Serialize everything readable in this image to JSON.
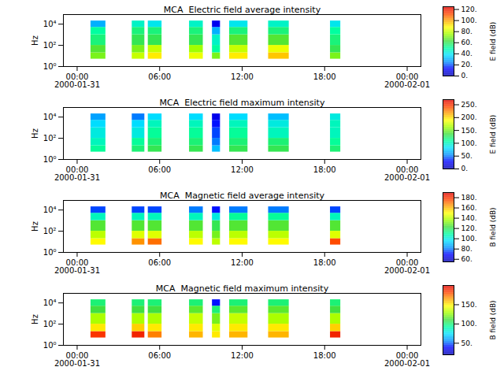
{
  "chart_data": [
    {
      "type": "heatmap",
      "title": "MCA  Electric field average intensity",
      "y_label": "Hz",
      "log": "y",
      "xlim": [
        "2000-01-30T23:00",
        "2000-02-01T01:00"
      ],
      "xticks": [
        {
          "value": "2000-01-31T00:00",
          "label": "00:00\n2000-01-31"
        },
        {
          "value": "2000-01-31T06:00",
          "label": "06:00"
        },
        {
          "value": "2000-01-31T12:00",
          "label": "12:00"
        },
        {
          "value": "2000-01-31T18:00",
          "label": "18:00"
        },
        {
          "value": "2000-02-01T00:00",
          "label": "00:00\n2000-02-01"
        }
      ],
      "ylim": [
        1,
        80000
      ],
      "yticks": [
        {
          "value": 1,
          "label": "10⁰"
        },
        {
          "value": 100,
          "label": "10²"
        },
        {
          "value": 10000,
          "label": "10⁴"
        }
      ],
      "x_start": [
        "2000-01-31T01:00",
        "2000-01-31T04:00",
        "2000-01-31T05:10",
        "2000-01-31T08:10",
        "2000-01-31T09:50",
        "2000-01-31T11:05",
        "2000-01-31T13:55",
        "2000-01-31T18:25"
      ],
      "x_end": [
        "2000-01-31T02:05",
        "2000-01-31T04:55",
        "2000-01-31T06:10",
        "2000-01-31T09:10",
        "2000-01-31T10:25",
        "2000-01-31T12:25",
        "2000-01-31T15:25",
        "2000-01-31T19:10"
      ],
      "y_bins": [
        5,
        20,
        100,
        1000,
        5000,
        20000
      ],
      "cells": [
        [
          70,
          65,
          55,
          50,
          30
        ],
        [
          80,
          70,
          60,
          55,
          45
        ],
        [
          90,
          80,
          60,
          55,
          40
        ],
        [
          85,
          75,
          60,
          55,
          45
        ],
        [
          70,
          50,
          45,
          30,
          10
        ],
        [
          90,
          80,
          65,
          55,
          40
        ],
        [
          95,
          85,
          65,
          55,
          45
        ],
        [
          70,
          60,
          55,
          50,
          40
        ]
      ],
      "colorbar_label": "E field (dB)",
      "zlim": [
        0,
        125
      ],
      "zticks": [
        {
          "value": 0,
          "label": "0."
        },
        {
          "value": 20,
          "label": "20."
        },
        {
          "value": 40,
          "label": "40."
        },
        {
          "value": 60,
          "label": "60."
        },
        {
          "value": 80,
          "label": "80."
        },
        {
          "value": 100,
          "label": "100."
        },
        {
          "value": 120,
          "label": "120."
        }
      ]
    },
    {
      "type": "heatmap",
      "title": "MCA  Electric field maximum intensity",
      "y_label": "Hz",
      "log": "y",
      "xlim": [
        "2000-01-30T23:00",
        "2000-02-01T01:00"
      ],
      "xticks": [
        {
          "value": "2000-01-31T00:00",
          "label": "00:00\n2000-01-31"
        },
        {
          "value": "2000-01-31T06:00",
          "label": "06:00"
        },
        {
          "value": "2000-01-31T12:00",
          "label": "12:00"
        },
        {
          "value": "2000-01-31T18:00",
          "label": "18:00"
        },
        {
          "value": "2000-02-01T00:00",
          "label": "00:00\n2000-02-01"
        }
      ],
      "ylim": [
        1,
        80000
      ],
      "yticks": [
        {
          "value": 1,
          "label": "10⁰"
        },
        {
          "value": 100,
          "label": "10²"
        },
        {
          "value": 10000,
          "label": "10⁴"
        }
      ],
      "x_start": [
        "2000-01-31T01:00",
        "2000-01-31T04:00",
        "2000-01-31T05:10",
        "2000-01-31T08:10",
        "2000-01-31T09:50",
        "2000-01-31T11:05",
        "2000-01-31T13:55",
        "2000-01-31T18:25"
      ],
      "x_end": [
        "2000-01-31T02:05",
        "2000-01-31T04:55",
        "2000-01-31T06:10",
        "2000-01-31T09:10",
        "2000-01-31T10:25",
        "2000-01-31T12:25",
        "2000-01-31T15:25",
        "2000-01-31T19:10"
      ],
      "y_bins": [
        5,
        20,
        100,
        1000,
        5000,
        20000
      ],
      "cells": [
        [
          110,
          100,
          90,
          80,
          60
        ],
        [
          120,
          110,
          90,
          80,
          50
        ],
        [
          130,
          120,
          110,
          100,
          80
        ],
        [
          130,
          120,
          110,
          100,
          80
        ],
        [
          70,
          50,
          40,
          30,
          20
        ],
        [
          130,
          120,
          110,
          100,
          80
        ],
        [
          130,
          120,
          100,
          90,
          70
        ],
        [
          120,
          110,
          100,
          100,
          90
        ]
      ],
      "colorbar_label": "E field (dB)",
      "zlim": [
        0,
        270
      ],
      "zticks": [
        {
          "value": 0,
          "label": "0."
        },
        {
          "value": 50,
          "label": "50."
        },
        {
          "value": 100,
          "label": "100."
        },
        {
          "value": 150,
          "label": "150."
        },
        {
          "value": 200,
          "label": "200."
        },
        {
          "value": 250,
          "label": "250."
        }
      ]
    },
    {
      "type": "heatmap",
      "title": "MCA  Magnetic field average intensity",
      "y_label": "Hz",
      "log": "y",
      "xlim": [
        "2000-01-30T23:00",
        "2000-02-01T01:00"
      ],
      "xticks": [
        {
          "value": "2000-01-31T00:00",
          "label": "00:00\n2000-01-31"
        },
        {
          "value": "2000-01-31T06:00",
          "label": "06:00"
        },
        {
          "value": "2000-01-31T12:00",
          "label": "12:00"
        },
        {
          "value": "2000-01-31T18:00",
          "label": "18:00"
        },
        {
          "value": "2000-02-01T00:00",
          "label": "00:00\n2000-02-01"
        }
      ],
      "ylim": [
        1,
        80000
      ],
      "yticks": [
        {
          "value": 1,
          "label": "10⁰"
        },
        {
          "value": 100,
          "label": "10²"
        },
        {
          "value": 10000,
          "label": "10⁴"
        }
      ],
      "x_start": [
        "2000-01-31T01:00",
        "2000-01-31T04:00",
        "2000-01-31T05:10",
        "2000-01-31T08:10",
        "2000-01-31T09:50",
        "2000-01-31T11:05",
        "2000-01-31T13:55",
        "2000-01-31T18:25"
      ],
      "x_end": [
        "2000-01-31T02:05",
        "2000-01-31T04:55",
        "2000-01-31T06:10",
        "2000-01-31T09:10",
        "2000-01-31T10:25",
        "2000-01-31T12:25",
        "2000-01-31T15:25",
        "2000-01-31T19:10"
      ],
      "y_bins": [
        5,
        20,
        100,
        1000,
        5000,
        20000
      ],
      "cells": [
        [
          150,
          140,
          125,
          105,
          75
        ],
        [
          165,
          145,
          125,
          105,
          75
        ],
        [
          170,
          145,
          125,
          105,
          75
        ],
        [
          150,
          140,
          125,
          105,
          80
        ],
        [
          140,
          130,
          120,
          100,
          70
        ],
        [
          150,
          140,
          125,
          110,
          80
        ],
        [
          150,
          140,
          125,
          110,
          80
        ],
        [
          175,
          145,
          125,
          105,
          75
        ]
      ],
      "colorbar_label": "B field (dB)",
      "zlim": [
        55,
        190
      ],
      "zticks": [
        {
          "value": 60,
          "label": "60."
        },
        {
          "value": 80,
          "label": "80."
        },
        {
          "value": 100,
          "label": "100."
        },
        {
          "value": 120,
          "label": "120."
        },
        {
          "value": 140,
          "label": "140."
        },
        {
          "value": 160,
          "label": "160."
        },
        {
          "value": 180,
          "label": "180."
        }
      ]
    },
    {
      "type": "heatmap",
      "title": "MCA  Magnetic field maximum intensity",
      "y_label": "Hz",
      "log": "y",
      "xlim": [
        "2000-01-30T23:00",
        "2000-02-01T01:00"
      ],
      "xticks": [
        {
          "value": "2000-01-31T00:00",
          "label": "00:00\n2000-01-31"
        },
        {
          "value": "2000-01-31T06:00",
          "label": "06:00"
        },
        {
          "value": "2000-01-31T12:00",
          "label": "12:00"
        },
        {
          "value": "2000-01-31T18:00",
          "label": "18:00"
        },
        {
          "value": "2000-02-01T00:00",
          "label": "00:00\n2000-02-01"
        }
      ],
      "ylim": [
        1,
        80000
      ],
      "yticks": [
        {
          "value": 1,
          "label": "10⁰"
        },
        {
          "value": 100,
          "label": "10²"
        },
        {
          "value": 10000,
          "label": "10⁴"
        }
      ],
      "x_start": [
        "2000-01-31T01:00",
        "2000-01-31T04:00",
        "2000-01-31T05:10",
        "2000-01-31T08:10",
        "2000-01-31T09:50",
        "2000-01-31T11:05",
        "2000-01-31T13:55",
        "2000-01-31T18:25"
      ],
      "x_end": [
        "2000-01-31T02:05",
        "2000-01-31T04:55",
        "2000-01-31T06:10",
        "2000-01-31T09:10",
        "2000-01-31T10:25",
        "2000-01-31T12:25",
        "2000-01-31T15:25",
        "2000-01-31T19:10"
      ],
      "y_bins": [
        5,
        20,
        100,
        1000,
        5000,
        20000
      ],
      "cells": [
        [
          185,
          150,
          130,
          110,
          100
        ],
        [
          190,
          155,
          130,
          110,
          100
        ],
        [
          170,
          150,
          130,
          110,
          100
        ],
        [
          160,
          150,
          135,
          115,
          100
        ],
        [
          150,
          140,
          120,
          100,
          40
        ],
        [
          160,
          150,
          135,
          115,
          100
        ],
        [
          160,
          150,
          130,
          115,
          100
        ],
        [
          190,
          155,
          130,
          110,
          100
        ]
      ],
      "colorbar_label": "B field (dB)",
      "zlim": [
        20,
        200
      ],
      "zticks": [
        {
          "value": 50,
          "label": "50."
        },
        {
          "value": 100,
          "label": "100."
        },
        {
          "value": 150,
          "label": "150."
        }
      ]
    }
  ]
}
